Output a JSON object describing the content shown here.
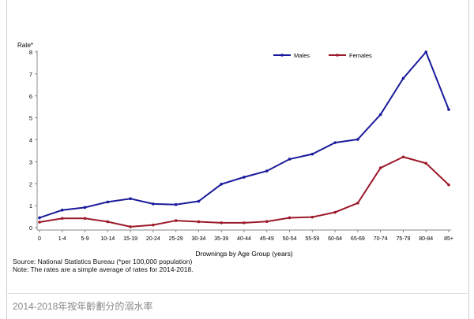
{
  "chart_data": {
    "type": "line",
    "ylabel": "Rate*",
    "xlabel": "Drownings by Age Group (years)",
    "ylim": [
      0,
      8
    ],
    "yticks": [
      "0",
      "1",
      "2",
      "3",
      "4",
      "5",
      "6",
      "7",
      "8"
    ],
    "categories": [
      "0",
      "1-4",
      "5-9",
      "10-14",
      "15-19",
      "20-24",
      "25-29",
      "30-34",
      "35-39",
      "40-44",
      "45-49",
      "50-54",
      "55-59",
      "60-64",
      "65-69",
      "70-74",
      "75-79",
      "80-84",
      "85+"
    ],
    "series": [
      {
        "name": "Males",
        "color": "#1a1a9c",
        "values": [
          0.45,
          0.8,
          0.92,
          1.17,
          1.32,
          1.08,
          1.05,
          1.2,
          1.98,
          2.3,
          2.58,
          3.12,
          3.35,
          3.87,
          4.02,
          5.15,
          6.8,
          8.0,
          5.38
        ]
      },
      {
        "name": "Females",
        "color": "#9c1a2a",
        "values": [
          0.25,
          0.42,
          0.42,
          0.27,
          0.04,
          0.12,
          0.32,
          0.27,
          0.22,
          0.22,
          0.28,
          0.45,
          0.48,
          0.7,
          1.12,
          2.72,
          3.22,
          2.93,
          1.95
        ]
      }
    ],
    "legend": "top-right"
  },
  "notes": {
    "source": "Source: National Statistics Bureau (*per 100,000 population)",
    "note": "Note: The rates are a simple average of rates for 2014-2018."
  },
  "caption": "2014-2018年按年齡劃分的溺水率"
}
